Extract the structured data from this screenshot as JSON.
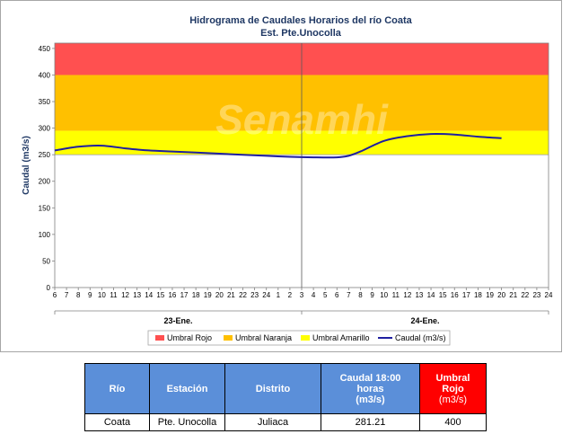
{
  "chart_data": {
    "type": "line",
    "title": "Hidrograma de Caudales Horarios del río Coata",
    "subtitle": "Est. Pte.Unocolla",
    "ylabel": "Caudal  (m3/s)",
    "ylim": [
      0,
      460
    ],
    "yticks": [
      0,
      50,
      100,
      150,
      200,
      250,
      300,
      350,
      400,
      450
    ],
    "hour_ticks": [
      "6",
      "7",
      "8",
      "9",
      "10",
      "11",
      "12",
      "13",
      "14",
      "15",
      "16",
      "17",
      "18",
      "19",
      "20",
      "21",
      "22",
      "23",
      "24",
      "1",
      "2",
      "3",
      "4",
      "5",
      "6",
      "7",
      "8",
      "9",
      "10",
      "11",
      "12",
      "13",
      "14",
      "15",
      "16",
      "17",
      "18",
      "19",
      "20",
      "21",
      "22",
      "23",
      "24"
    ],
    "days": [
      "23-Ene.",
      "24-Ene."
    ],
    "day_boundary_hour_index": 21,
    "bands": [
      {
        "name": "Umbral Rojo",
        "from": 400,
        "to": 460,
        "color": "#ff5050"
      },
      {
        "name": "Umbral Naranja",
        "from": 295,
        "to": 400,
        "color": "#ffc000"
      },
      {
        "name": "Umbral Amarillo",
        "from": 250,
        "to": 295,
        "color": "#ffff00"
      }
    ],
    "series": [
      {
        "name": "Caudal (m3/s)",
        "color": "#1f1fa0",
        "x": [
          0,
          2,
          4,
          6,
          8,
          10,
          12,
          14,
          16,
          18,
          20,
          22,
          24,
          25,
          26,
          28,
          30,
          32,
          34,
          36,
          38
        ],
        "y": [
          258,
          265,
          267,
          262,
          258,
          256,
          254,
          252,
          250,
          248,
          246,
          245,
          245,
          248,
          256,
          276,
          285,
          289,
          288,
          284,
          281
        ]
      }
    ],
    "legend_position": "bottom",
    "grid": false
  },
  "legend": {
    "rojo": "Umbral Rojo",
    "naranja": "Umbral Naranja",
    "amarillo": "Umbral Amarillo",
    "caudal": "Caudal (m3/s)"
  },
  "colors": {
    "rojo": "#ff5050",
    "naranja": "#ffc000",
    "amarillo": "#ffff00",
    "caudal": "#1f1fa0",
    "header_blue": "#5b8fd9",
    "header_red": "#ff0000"
  },
  "watermark": "Senamhi",
  "table": {
    "headers": {
      "rio": "Río",
      "estacion": "Estación",
      "distrito": "Distrito",
      "caudal_line1": "Caudal 18:00",
      "caudal_line2": "horas",
      "caudal_line3": "(m3/s)",
      "umbral_line1": "Umbral",
      "umbral_line2": "Rojo",
      "umbral_line3": "(m3/s)"
    },
    "row": {
      "rio": "Coata",
      "estacion": "Pte. Unocolla",
      "distrito": "Juliaca",
      "caudal": "281.21",
      "umbral": "400"
    }
  }
}
